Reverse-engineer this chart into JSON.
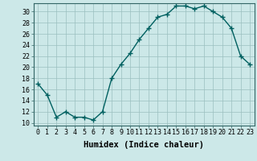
{
  "x": [
    0,
    1,
    2,
    3,
    4,
    5,
    6,
    7,
    8,
    9,
    10,
    11,
    12,
    13,
    14,
    15,
    16,
    17,
    18,
    19,
    20,
    21,
    22,
    23
  ],
  "y": [
    17,
    15,
    11,
    12,
    11,
    11,
    10.5,
    12,
    18,
    20.5,
    22.5,
    25,
    27,
    29,
    29.5,
    31,
    31,
    30.5,
    31,
    30,
    29,
    27,
    22,
    20.5
  ],
  "line_color": "#006060",
  "marker": "+",
  "marker_size": 4,
  "marker_lw": 1.0,
  "line_width": 1.0,
  "bg_color": "#cce8e8",
  "grid_color": "#9bbfbf",
  "xlabel": "Humidex (Indice chaleur)",
  "xlim": [
    -0.5,
    23.5
  ],
  "ylim": [
    9.5,
    31.5
  ],
  "yticks": [
    10,
    12,
    14,
    16,
    18,
    20,
    22,
    24,
    26,
    28,
    30
  ],
  "xticks": [
    0,
    1,
    2,
    3,
    4,
    5,
    6,
    7,
    8,
    9,
    10,
    11,
    12,
    13,
    14,
    15,
    16,
    17,
    18,
    19,
    20,
    21,
    22,
    23
  ],
  "xtick_labels": [
    "0",
    "1",
    "2",
    "3",
    "4",
    "5",
    "6",
    "7",
    "8",
    "9",
    "10",
    "11",
    "12",
    "13",
    "14",
    "15",
    "16",
    "17",
    "18",
    "19",
    "20",
    "21",
    "22",
    "23"
  ],
  "tick_fontsize": 6,
  "xlabel_fontsize": 7.5,
  "spine_color": "#336666"
}
